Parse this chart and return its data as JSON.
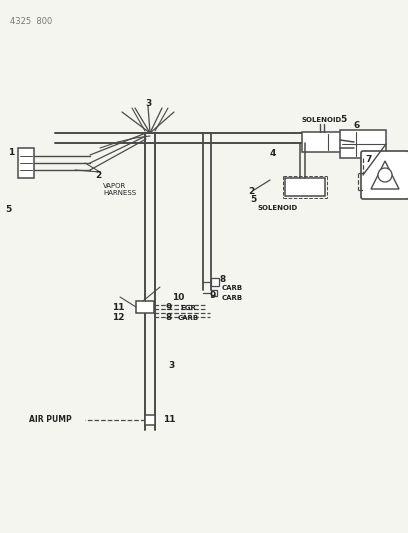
{
  "bg_color": "#f5f5f0",
  "line_color": "#4a4a4a",
  "text_color": "#222222",
  "fig_width": 4.08,
  "fig_height": 5.33,
  "dpi": 100,
  "header": "4325  800",
  "labels": {
    "vapor_harness": "VAPOR\nHARNESS",
    "solenoid_top": "SOLENOID",
    "solenoid_bot": "SOLENOID",
    "carb1": "CARB",
    "carb2": "CARB",
    "egr": "EGR",
    "carb3": "CARB",
    "air_pump": "AIR PUMP"
  }
}
